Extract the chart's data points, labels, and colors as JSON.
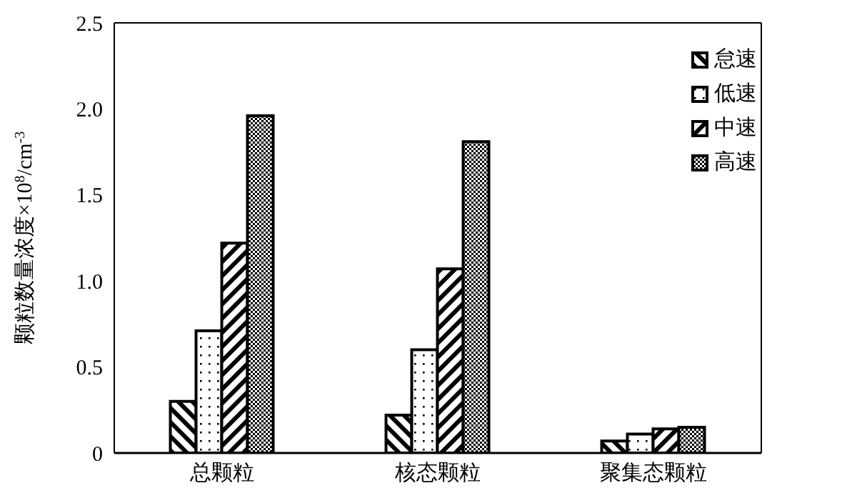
{
  "chart_data": {
    "type": "bar",
    "ylabel": "颗粒数量浓度×10$^{8}$/cm$^{-3}$",
    "categories": [
      "总颗粒",
      "核态颗粒",
      "聚集态颗粒"
    ],
    "series": [
      {
        "name": "怠速",
        "color": "#000000",
        "values": [
          0.3,
          0.22,
          0.07
        ]
      },
      {
        "name": "低速",
        "color": "#000000",
        "values": [
          0.71,
          0.6,
          0.11
        ]
      },
      {
        "name": "中速",
        "color": "#000000",
        "values": [
          1.22,
          1.07,
          0.14
        ]
      },
      {
        "name": "高速",
        "color": "#000000",
        "values": [
          1.96,
          1.81,
          0.15
        ]
      }
    ],
    "ylim": [
      0,
      2.5
    ],
    "yticks": [
      0,
      {
        "value": 0.5,
        "label": "0.5"
      },
      {
        "value": 1.0,
        "label": "1.0"
      },
      {
        "value": 1.5,
        "label": "1.5"
      },
      {
        "value": 2.0,
        "label": "2.0"
      },
      {
        "value": 2.5,
        "label": "2.5"
      }
    ],
    "grid": false,
    "legend": "top right"
  }
}
